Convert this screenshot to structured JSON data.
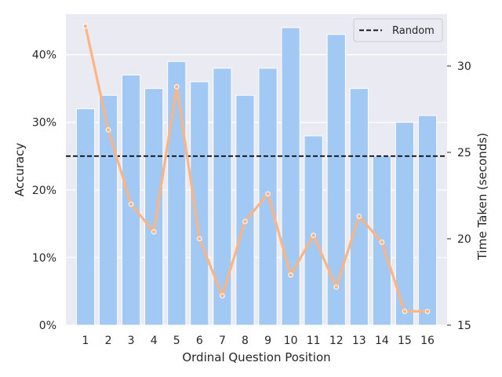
{
  "chart_data": {
    "type": "bar",
    "title": "",
    "xlabel": "Ordinal Question Position",
    "ylabel": "Accuracy",
    "y2label": "Time Taken (seconds)",
    "categories": [
      "1",
      "2",
      "3",
      "4",
      "5",
      "6",
      "7",
      "8",
      "9",
      "10",
      "11",
      "12",
      "13",
      "14",
      "15",
      "16"
    ],
    "series": [
      {
        "type": "bar",
        "axis": "left",
        "values": [
          32,
          34,
          37,
          35,
          39,
          36,
          38,
          34,
          38,
          44,
          28,
          43,
          35,
          25,
          30,
          31
        ],
        "color": "#a1c9f4"
      },
      {
        "type": "line",
        "axis": "right",
        "values": [
          32.3,
          26.3,
          22.0,
          20.4,
          28.8,
          20.0,
          16.7,
          21.0,
          22.6,
          17.9,
          20.2,
          17.2,
          21.3,
          19.8,
          15.8,
          15.8
        ],
        "color": "#ffb482"
      }
    ],
    "reference_line": {
      "name": "Random",
      "value": 25,
      "axis": "left",
      "style": "dashed",
      "color": "#000000"
    },
    "ylim": [
      0,
      46
    ],
    "yticks": [
      0,
      10,
      20,
      30,
      40
    ],
    "ytick_labels": [
      "0%",
      "10%",
      "20%",
      "30%",
      "40%"
    ],
    "y2lim": [
      15,
      33
    ],
    "y2ticks": [
      15,
      20,
      25,
      30
    ],
    "y2tick_labels": [
      "15",
      "20",
      "25",
      "30"
    ],
    "legend": {
      "placement": "top-right",
      "entries": [
        "Random"
      ]
    },
    "grid": true,
    "colors": {
      "background": "#eaeaf2",
      "grid": "#ffffff",
      "bar": "#a1c9f4",
      "line": "#ffb482"
    }
  }
}
